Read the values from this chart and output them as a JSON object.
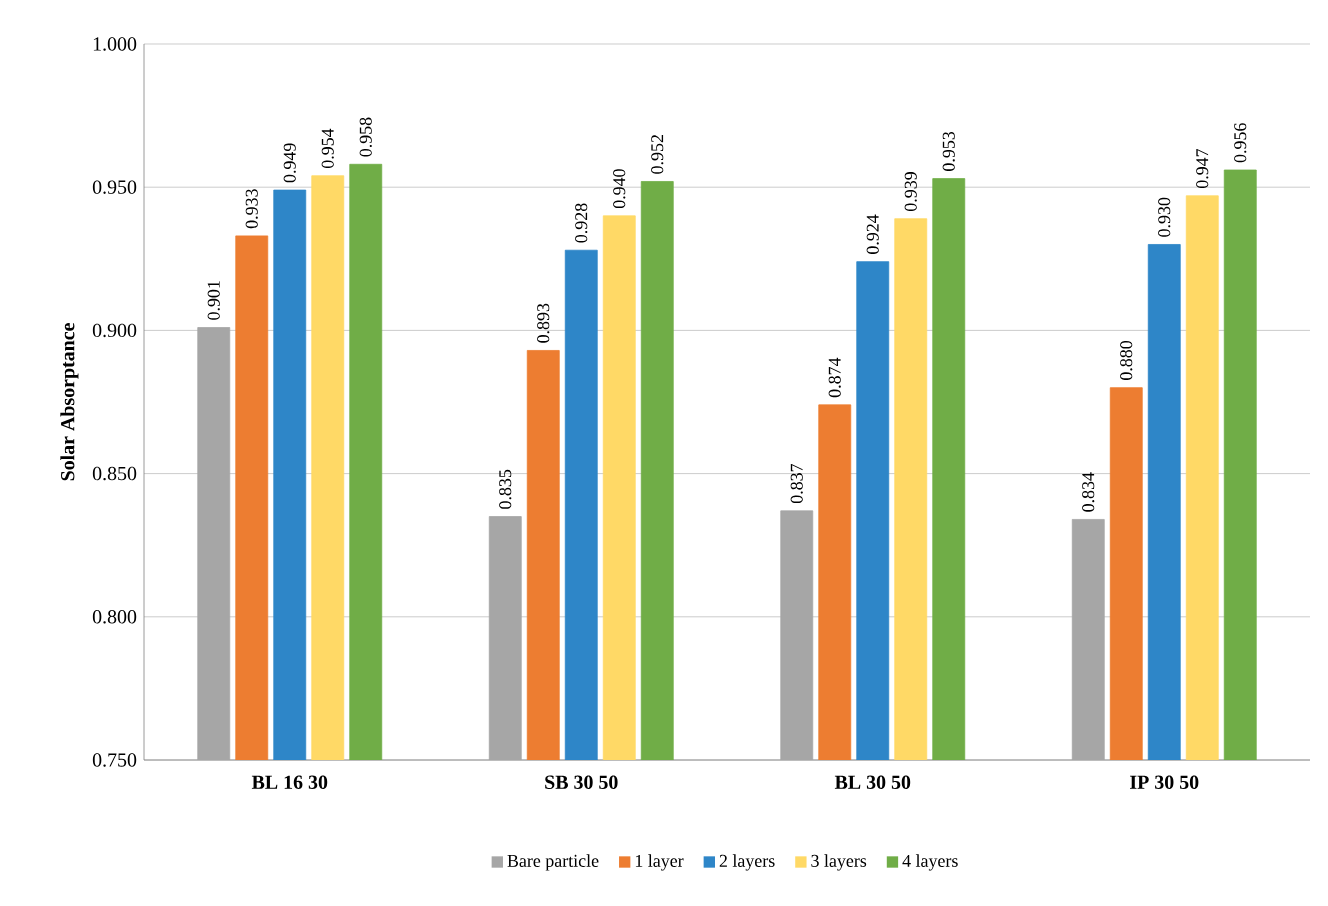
{
  "chart_data": {
    "type": "bar",
    "ylabel": "Solar Absorptance",
    "categories": [
      "BL 16 30",
      "SB 30 50",
      "BL 30 50",
      "IP 30 50"
    ],
    "series": [
      {
        "name": "Bare particle",
        "color": "#a6a6a6",
        "values": [
          0.901,
          0.835,
          0.837,
          0.834
        ],
        "value_labels": [
          "0.901",
          "0.835",
          "0.837",
          "0.834"
        ]
      },
      {
        "name": "1 layer",
        "color": "#ed7d31",
        "values": [
          0.933,
          0.893,
          0.874,
          0.88
        ],
        "value_labels": [
          "0.933",
          "0.893",
          "0.874",
          "0.880"
        ]
      },
      {
        "name": "2 layers",
        "color": "#2e86c8",
        "values": [
          0.949,
          0.928,
          0.924,
          0.93
        ],
        "value_labels": [
          "0.949",
          "0.928",
          "0.924",
          "0.930"
        ]
      },
      {
        "name": "3 layers",
        "color": "#ffd966",
        "values": [
          0.954,
          0.94,
          0.939,
          0.947
        ],
        "value_labels": [
          "0.954",
          "0.940",
          "0.939",
          "0.947"
        ]
      },
      {
        "name": "4 layers",
        "color": "#70ad47",
        "values": [
          0.958,
          0.952,
          0.953,
          0.956
        ],
        "value_labels": [
          "0.958",
          "0.952",
          "0.953",
          "0.956"
        ]
      }
    ],
    "ylim": [
      0.75,
      1.0
    ],
    "yticks": [
      {
        "value": 0.75,
        "label": "0.750"
      },
      {
        "value": 0.8,
        "label": "0.800"
      },
      {
        "value": 0.85,
        "label": "0.850"
      },
      {
        "value": 0.9,
        "label": "0.900"
      },
      {
        "value": 0.95,
        "label": "0.950"
      },
      {
        "value": 1.0,
        "label": "1.000"
      }
    ],
    "grid": "y",
    "legend": "bottom"
  }
}
